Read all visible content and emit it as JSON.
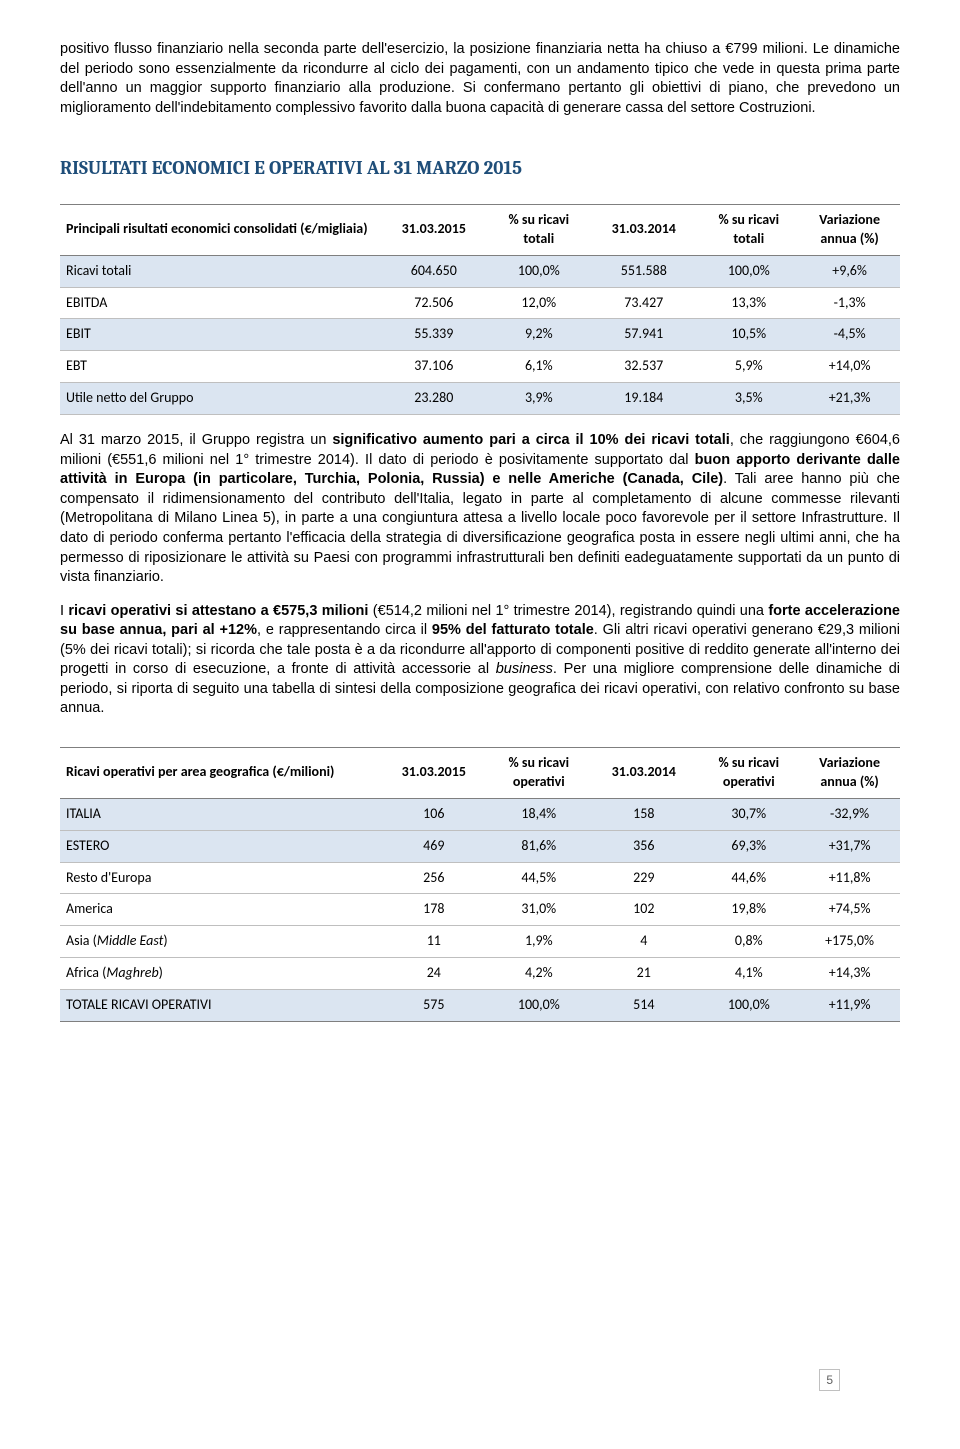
{
  "intro": {
    "p1": "positivo flusso finanziario nella seconda parte dell'esercizio, la posizione finanziaria netta ha chiuso a €799 milioni. Le dinamiche del periodo sono essenzialmente da ricondurre al ciclo dei pagamenti, con un andamento tipico che vede in questa prima parte dell'anno un maggior supporto finanziario alla produzione. Si confermano pertanto gli obiettivi di piano, che prevedono un miglioramento dell'indebitamento complessivo favorito dalla  buona capacità di generare cassa del settore Costruzioni."
  },
  "section_title": "RISULTATI ECONOMICI E OPERATIVI AL 31 MARZO 2015",
  "table1": {
    "header": {
      "rowlabel": "Principali risultati economici consolidati (€/migliaia)",
      "c1": "31.03.2015",
      "c2": "% su ricavi totali",
      "c3": "31.03.2014",
      "c4": "% su ricavi totali",
      "c5": "Variazione annua (%)"
    },
    "rows": [
      {
        "label": "Ricavi totali",
        "v1": "604.650",
        "v2": "100,0%",
        "v3": "551.588",
        "v4": "100,0%",
        "v5": "+9,6%",
        "hl": true
      },
      {
        "label": "EBITDA",
        "v1": "72.506",
        "v2": "12,0%",
        "v3": "73.427",
        "v4": "13,3%",
        "v5": "-1,3%"
      },
      {
        "label": "EBIT",
        "v1": "55.339",
        "v2": "9,2%",
        "v3": "57.941",
        "v4": "10,5%",
        "v5": "-4,5%",
        "hl": true
      },
      {
        "label": "EBT",
        "v1": "37.106",
        "v2": "6,1%",
        "v3": "32.537",
        "v4": "5,9%",
        "v5": "+14,0%"
      },
      {
        "label": "Utile netto del Gruppo",
        "v1": "23.280",
        "v2": "3,9%",
        "v3": "19.184",
        "v4": "3,5%",
        "v5": "+21,3%",
        "hl": true
      }
    ]
  },
  "mid": {
    "p1a": "Al 31 marzo 2015, il Gruppo registra un ",
    "p1b": "significativo aumento pari a circa il 10% dei ricavi totali",
    "p1c": ", che raggiungono €604,6 milioni (€551,6 milioni nel 1° trimestre 2014). Il dato di periodo è posivitamente supportato dal ",
    "p1d": "buon apporto derivante dalle attività in Europa (in particolare, Turchia, Polonia, Russia) e nelle Americhe (Canada, Cile)",
    "p1e": ". Tali aree hanno più che compensato il ridimensionamento del contributo dell'Italia, legato in parte al completamento di alcune commesse rilevanti (Metropolitana di Milano Linea 5), in parte a una congiuntura attesa a livello locale poco favorevole per il settore Infrastrutture. Il dato di periodo conferma pertanto l'efficacia della strategia di diversificazione geografica posta in essere negli ultimi anni, che ha permesso di riposizionare le attività su Paesi con programmi infrastrutturali ben definiti eadeguatamente supportati da un punto di vista finanziario.",
    "p2a": "I ",
    "p2b": "ricavi operativi si attestano a €575,3 milioni",
    "p2c": " (€514,2 milioni nel 1° trimestre 2014), registrando quindi una ",
    "p2d": "forte accelerazione su base annua, pari al +12%",
    "p2e": ", e rappresentando circa il ",
    "p2f": "95% del fatturato totale",
    "p2g": ". Gli altri ricavi operativi generano €29,3 milioni (5% dei ricavi totali); si ricorda che tale posta è a da ricondurre all'apporto di componenti positive di reddito generate all'interno dei progetti in corso di esecuzione, a fronte di attività accessorie al ",
    "p2h": "business",
    "p2i": ". Per una migliore comprensione delle dinamiche di periodo, si riporta di seguito una tabella di sintesi della composizione geografica dei ricavi operativi, con relativo confronto su base annua."
  },
  "table2": {
    "header": {
      "rowlabel": "Ricavi operativi per area geografica (€/milioni)",
      "c1": "31.03.2015",
      "c2": "% su ricavi operativi",
      "c3": "31.03.2014",
      "c4": "% su ricavi operativi",
      "c5": "Variazione annua (%)"
    },
    "rows": [
      {
        "label": "ITALIA",
        "v1": "106",
        "v2": "18,4%",
        "v3": "158",
        "v4": "30,7%",
        "v5": "-32,9%",
        "hl": true
      },
      {
        "label": "ESTERO",
        "v1": "469",
        "v2": "81,6%",
        "v3": "356",
        "v4": "69,3%",
        "v5": "+31,7%",
        "hl": true
      },
      {
        "label": "Resto d'Europa",
        "v1": "256",
        "v2": "44,5%",
        "v3": "229",
        "v4": "44,6%",
        "v5": "+11,8%"
      },
      {
        "label": "America",
        "v1": "178",
        "v2": "31,0%",
        "v3": "102",
        "v4": "19,8%",
        "v5": "+74,5%"
      },
      {
        "label": "Asia (Middle East)",
        "v1": "11",
        "v2": "1,9%",
        "v3": "4",
        "v4": "0,8%",
        "v5": "+175,0%",
        "italic_part": "Middle East"
      },
      {
        "label": "Africa (Maghreb)",
        "v1": "24",
        "v2": "4,2%",
        "v3": "21",
        "v4": "4,1%",
        "v5": "+14,3%",
        "italic_part": "Maghreb"
      }
    ],
    "total": {
      "label": "TOTALE RICAVI OPERATIVI",
      "v1": "575",
      "v2": "100,0%",
      "v3": "514",
      "v4": "100,0%",
      "v5": "+11,9%",
      "hl": true
    }
  },
  "page_number": "5",
  "style": {
    "title_color": "#1f4e79",
    "highlight_bg": "#dbe5f1",
    "border_dark": "#7f7f7f",
    "border_light": "#bfbfbf"
  }
}
